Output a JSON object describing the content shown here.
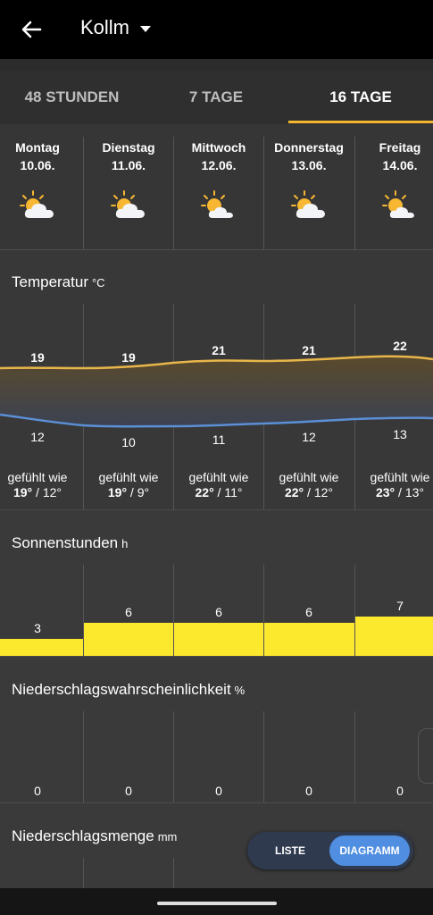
{
  "header": {
    "location": "Kollm"
  },
  "tabs": [
    {
      "label": "48 STUNDEN",
      "active": false
    },
    {
      "label": "7 TAGE",
      "active": false
    },
    {
      "label": "16 TAGE",
      "active": true
    }
  ],
  "days": [
    {
      "weekday": "Montag",
      "date": "10.06.",
      "icon": "partly-cloudy-icon"
    },
    {
      "weekday": "Dienstag",
      "date": "11.06.",
      "icon": "partly-cloudy-icon"
    },
    {
      "weekday": "Mittwoch",
      "date": "12.06.",
      "icon": "partly-cloudy-icon"
    },
    {
      "weekday": "Donnerstag",
      "date": "13.06.",
      "icon": "partly-cloudy-icon"
    },
    {
      "weekday": "Freitag",
      "date": "14.06.",
      "icon": "partly-cloudy-icon"
    }
  ],
  "temperature": {
    "title": "Temperatur",
    "unit": "°C",
    "felt_label": "gefühlt wie",
    "max": [
      "19",
      "19",
      "21",
      "21",
      "22"
    ],
    "min": [
      "12",
      "10",
      "11",
      "12",
      "13"
    ],
    "felt": [
      {
        "max": "19°",
        "min": " / 12°"
      },
      {
        "max": "19°",
        "min": " / 9°"
      },
      {
        "max": "22°",
        "min": " / 11°"
      },
      {
        "max": "22°",
        "min": " / 12°"
      },
      {
        "max": "23°",
        "min": " / 13°"
      }
    ]
  },
  "sunshine": {
    "title": "Sonnenstunden",
    "unit": "h",
    "values": [
      "3",
      "6",
      "6",
      "6",
      "7"
    ]
  },
  "precip_probability": {
    "title": "Niederschlagswahrscheinlichkeit",
    "unit": "%",
    "values": [
      "0",
      "0",
      "0",
      "0",
      "0"
    ]
  },
  "precip_amount": {
    "title": "Niederschlagsmenge",
    "unit": "mm"
  },
  "view_toggle": {
    "list_label": "LISTE",
    "chart_label": "DIAGRAMM",
    "selected": "DIAGRAMM"
  },
  "colors": {
    "max_line": "#e8b64a",
    "min_line": "#5b8fd6",
    "sun_bar": "#fce82c",
    "tab_accent": "#f5b72e",
    "toggle_active": "#4f8ee0"
  }
}
